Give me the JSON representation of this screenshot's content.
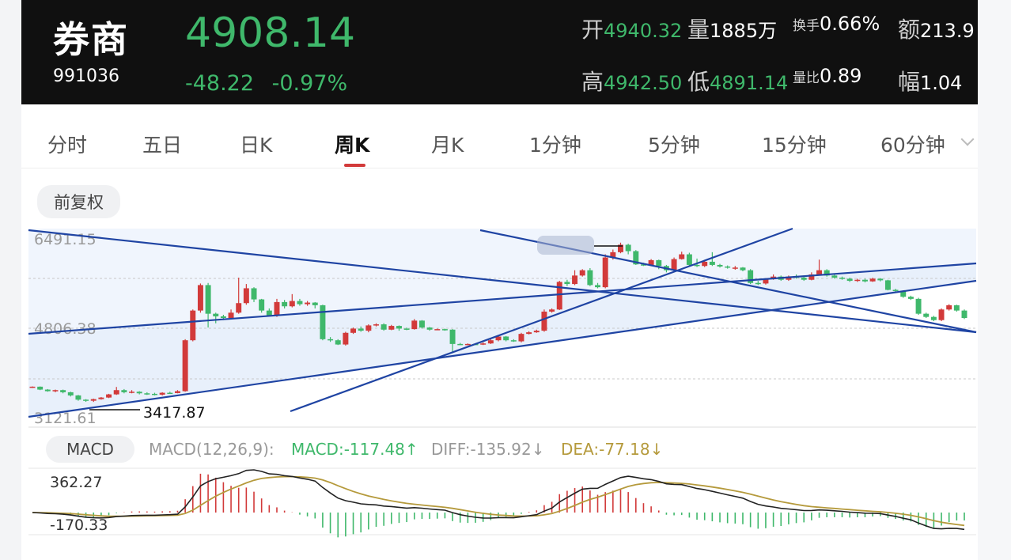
{
  "header": {
    "name": "券商",
    "code": "991036",
    "price": "4908.14",
    "change": "-48.22",
    "change_pct": "-0.97%",
    "stats": {
      "open_label": "开",
      "open": "4940.32",
      "volume_label": "量",
      "volume": "1885万",
      "turnover_label": "换手",
      "turnover": "0.66%",
      "amount_label": "额",
      "amount": "213.9",
      "high_label": "高",
      "high": "4942.50",
      "low_label": "低",
      "low": "4891.14",
      "vol_ratio_label": "量比",
      "vol_ratio": "0.89",
      "amplitude_label": "幅",
      "amplitude": "1.04"
    }
  },
  "tabs": [
    "分时",
    "五日",
    "日K",
    "周K",
    "月K",
    "1分钟",
    "5分钟",
    "15分钟",
    "60分钟"
  ],
  "active_tab": "周K",
  "adjust_button": "前复权",
  "macd": {
    "button": "MACD",
    "params": "MACD(12,26,9):",
    "macd_value": "MACD:-117.48↑",
    "diff_value": "DIFF:-135.92↓",
    "dea_value": "DEA:-77.18↓"
  },
  "colors": {
    "up": "#d23a3a",
    "down": "#3fb86b",
    "trendline": "#1f44a3",
    "channel_fill": "#e6eefb",
    "diff_line": "#222222",
    "dea_line": "#b59a3c"
  },
  "chart_data": [
    {
      "type": "candlestick",
      "y_tick_labels": [
        "6491.15",
        "4806.38",
        "3121.61"
      ],
      "ylim": [
        3121.61,
        6491.15
      ],
      "grid": true,
      "annotations": [
        {
          "text": "3417.87",
          "value": 3417.87
        }
      ],
      "candles": [
        [
          3700,
          3705,
          3710,
          3680
        ],
        [
          3705,
          3650,
          3710,
          3640
        ],
        [
          3650,
          3620,
          3660,
          3610
        ],
        [
          3620,
          3640,
          3650,
          3600
        ],
        [
          3640,
          3600,
          3650,
          3580
        ],
        [
          3600,
          3540,
          3610,
          3520
        ],
        [
          3540,
          3460,
          3550,
          3440
        ],
        [
          3460,
          3440,
          3470,
          3420
        ],
        [
          3440,
          3470,
          3480,
          3417.87
        ],
        [
          3470,
          3500,
          3510,
          3460
        ],
        [
          3500,
          3560,
          3570,
          3490
        ],
        [
          3560,
          3640,
          3700,
          3550
        ],
        [
          3640,
          3600,
          3660,
          3580
        ],
        [
          3600,
          3610,
          3640,
          3580
        ],
        [
          3610,
          3580,
          3620,
          3560
        ],
        [
          3580,
          3570,
          3600,
          3550
        ],
        [
          3570,
          3555,
          3590,
          3540
        ],
        [
          3555,
          3590,
          3600,
          3540
        ],
        [
          3590,
          3585,
          3610,
          3570
        ],
        [
          3585,
          3620,
          3640,
          3580
        ],
        [
          3620,
          4580,
          4600,
          3610
        ],
        [
          4580,
          5140,
          5160,
          4560
        ],
        [
          5140,
          5620,
          5650,
          5100
        ],
        [
          5620,
          5080,
          5660,
          4820
        ],
        [
          5080,
          5030,
          5100,
          4900
        ],
        [
          5030,
          5000,
          5060,
          4960
        ],
        [
          5000,
          5100,
          5160,
          4980
        ],
        [
          5100,
          5280,
          5760,
          5080
        ],
        [
          5280,
          5560,
          5640,
          5250
        ],
        [
          5560,
          5350,
          5580,
          5300
        ],
        [
          5350,
          5140,
          5360,
          5100
        ],
        [
          5140,
          5050,
          5180,
          5030
        ],
        [
          5050,
          5300,
          5360,
          5020
        ],
        [
          5300,
          5220,
          5340,
          5180
        ],
        [
          5220,
          5320,
          5450,
          5200
        ],
        [
          5320,
          5260,
          5360,
          5230
        ],
        [
          5260,
          5290,
          5320,
          5230
        ],
        [
          5290,
          5240,
          5300,
          5180
        ],
        [
          5240,
          4600,
          5250,
          4580
        ],
        [
          4600,
          4580,
          4640,
          4550
        ],
        [
          4580,
          4500,
          4600,
          4490
        ],
        [
          4500,
          4720,
          4740,
          4480
        ],
        [
          4720,
          4800,
          4820,
          4700
        ],
        [
          4800,
          4760,
          4840,
          4740
        ],
        [
          4760,
          4860,
          4880,
          4730
        ],
        [
          4860,
          4880,
          4900,
          4840
        ],
        [
          4880,
          4780,
          4900,
          4760
        ],
        [
          4780,
          4850,
          4870,
          4770
        ],
        [
          4850,
          4800,
          4860,
          4760
        ],
        [
          4800,
          4790,
          4820,
          4770
        ],
        [
          4790,
          4950,
          4980,
          4780
        ],
        [
          4950,
          4820,
          4960,
          4800
        ],
        [
          4820,
          4780,
          4830,
          4760
        ],
        [
          4780,
          4790,
          4800,
          4770
        ],
        [
          4790,
          4780,
          4800,
          4760
        ],
        [
          4780,
          4510,
          4790,
          4350
        ],
        [
          4510,
          4500,
          4530,
          4490
        ],
        [
          4500,
          4510,
          4520,
          4490
        ],
        [
          4510,
          4500,
          4520,
          4490
        ],
        [
          4500,
          4520,
          4540,
          4490
        ],
        [
          4520,
          4580,
          4600,
          4510
        ],
        [
          4580,
          4650,
          4680,
          4560
        ],
        [
          4650,
          4580,
          4660,
          4560
        ],
        [
          4580,
          4560,
          4600,
          4550
        ],
        [
          4560,
          4700,
          4720,
          4540
        ],
        [
          4700,
          4730,
          4750,
          4690
        ],
        [
          4730,
          4760,
          4780,
          4720
        ],
        [
          4760,
          5120,
          5160,
          4740
        ],
        [
          5120,
          5160,
          5180,
          5100
        ],
        [
          5160,
          5680,
          5700,
          5150
        ],
        [
          5680,
          5640,
          5720,
          5600
        ],
        [
          5640,
          5800,
          5900,
          5620
        ],
        [
          5800,
          5900,
          5920,
          5780
        ],
        [
          5900,
          5620,
          5940,
          5600
        ],
        [
          5620,
          5580,
          5660,
          5560
        ],
        [
          5580,
          6140,
          6200,
          5560
        ],
        [
          6140,
          6240,
          6290,
          6100
        ],
        [
          6240,
          6380,
          6420,
          6220
        ],
        [
          6380,
          6260,
          6400,
          6200
        ],
        [
          6260,
          6010,
          6280,
          6000
        ],
        [
          6010,
          6000,
          6040,
          5980
        ],
        [
          6000,
          6090,
          6110,
          5990
        ],
        [
          6090,
          5980,
          6100,
          5920
        ],
        [
          5980,
          5900,
          6000,
          5860
        ],
        [
          5900,
          6110,
          6140,
          5880
        ],
        [
          6110,
          6200,
          6250,
          6100
        ],
        [
          6200,
          6000,
          6230,
          5980
        ],
        [
          6000,
          5980,
          6120,
          5960
        ],
        [
          5980,
          6060,
          6080,
          5960
        ],
        [
          6060,
          6000,
          6240,
          5980
        ],
        [
          6000,
          5970,
          6020,
          5950
        ],
        [
          5970,
          5950,
          5990,
          5930
        ],
        [
          5950,
          5950,
          5980,
          5910
        ],
        [
          5950,
          5900,
          5960,
          5880
        ],
        [
          5900,
          5660,
          5920,
          5640
        ],
        [
          5660,
          5650,
          5700,
          5620
        ],
        [
          5650,
          5730,
          5750,
          5630
        ],
        [
          5730,
          5780,
          5820,
          5720
        ],
        [
          5780,
          5720,
          5800,
          5700
        ],
        [
          5720,
          5780,
          5800,
          5700
        ],
        [
          5780,
          5760,
          5820,
          5740
        ],
        [
          5760,
          5720,
          5780,
          5700
        ],
        [
          5720,
          5820,
          5860,
          5710
        ],
        [
          5820,
          5900,
          6100,
          5810
        ],
        [
          5900,
          5800,
          5920,
          5780
        ],
        [
          5800,
          5760,
          5820,
          5740
        ],
        [
          5760,
          5740,
          5780,
          5720
        ],
        [
          5740,
          5700,
          5760,
          5680
        ],
        [
          5700,
          5720,
          5740,
          5680
        ],
        [
          5720,
          5690,
          5740,
          5670
        ],
        [
          5690,
          5740,
          5760,
          5680
        ],
        [
          5740,
          5710,
          5750,
          5690
        ],
        [
          5710,
          5530,
          5720,
          5520
        ],
        [
          5530,
          5510,
          5550,
          5490
        ],
        [
          5510,
          5400,
          5520,
          5380
        ],
        [
          5400,
          5360,
          5420,
          5340
        ],
        [
          5360,
          5080,
          5380,
          5060
        ],
        [
          5080,
          5020,
          5100,
          5000
        ],
        [
          5020,
          4960,
          5040,
          4940
        ],
        [
          4960,
          5160,
          5180,
          4940
        ],
        [
          5160,
          5240,
          5260,
          5140
        ],
        [
          5240,
          5140,
          5250,
          5120
        ],
        [
          5140,
          5000,
          5160,
          4980
        ]
      ]
    },
    {
      "type": "macd",
      "y_tick_labels": [
        "362.27",
        "-170.33"
      ],
      "ylim": [
        -170.33,
        362.27
      ],
      "params": [
        12,
        26,
        9
      ],
      "last": {
        "macd": -117.48,
        "diff": -135.92,
        "dea": -77.18
      }
    }
  ]
}
